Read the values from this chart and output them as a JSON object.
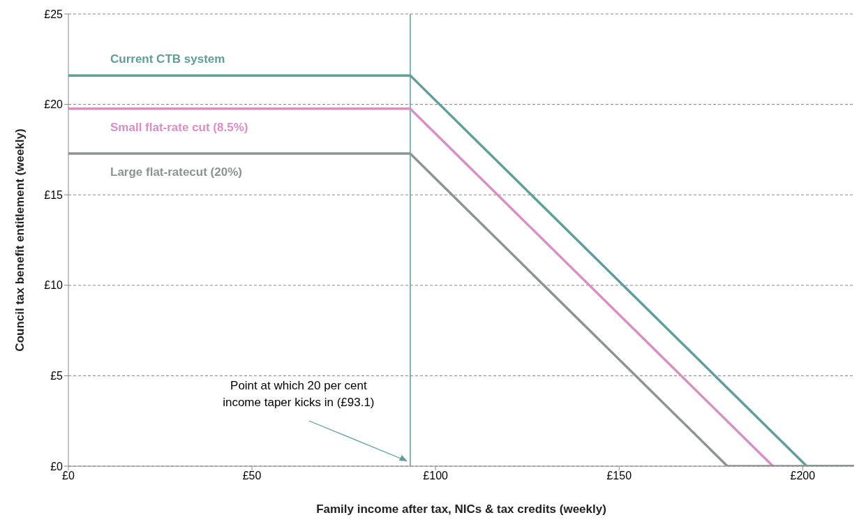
{
  "chart_data": {
    "type": "line",
    "xlabel": "Family income after tax, NICs & tax credits (weekly)",
    "ylabel": "Council tax benefit entitlement (weekly)",
    "series": [
      {
        "name": "Current CTB system",
        "color": "#5f9e9a",
        "x": [
          0,
          93.1,
          201.1,
          214
        ],
        "values": [
          21.6,
          21.6,
          0,
          0
        ]
      },
      {
        "name": "Small flat-rate cut (8.5%)",
        "color": "#d98fc5",
        "x": [
          0,
          93.1,
          191.9
        ],
        "values": [
          19.76,
          19.76,
          0
        ]
      },
      {
        "name": "Large flat-ratecut (20%)",
        "color": "#8c9490",
        "x": [
          0,
          93.1,
          179.5,
          214
        ],
        "values": [
          17.28,
          17.28,
          0,
          0
        ]
      }
    ],
    "xlim": [
      0,
      214
    ],
    "xticks": [
      {
        "value": 0,
        "label": "£0"
      },
      {
        "value": 50,
        "label": "£50"
      },
      {
        "value": 100,
        "label": "£100"
      },
      {
        "value": 150,
        "label": "£150"
      },
      {
        "value": 200,
        "label": "£200"
      }
    ],
    "ylim": [
      0,
      25
    ],
    "yticks": [
      {
        "value": 0,
        "label": "£0"
      },
      {
        "value": 5,
        "label": "£5"
      },
      {
        "value": 10,
        "label": "£10"
      },
      {
        "value": 15,
        "label": "£15"
      },
      {
        "value": 20,
        "label": "£20"
      },
      {
        "value": 25,
        "label": "£25"
      }
    ],
    "ref_lines": [
      {
        "axis": "x",
        "value": 93.1,
        "color": "#5f9e9a"
      }
    ],
    "annotations": [
      "Point at which 20 per cent income taper kicks in (£93.1)"
    ],
    "grid": "y",
    "marker": "none",
    "line_style": "solid"
  }
}
